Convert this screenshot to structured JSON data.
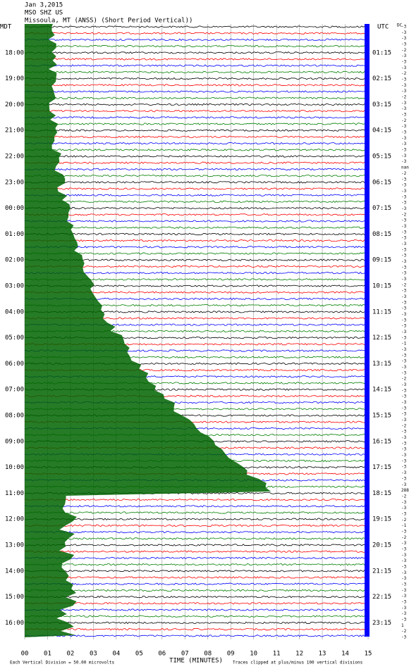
{
  "chart_data": {
    "type": "helicorder",
    "date": "Jan 3,2015",
    "station": "MSO SHZ US",
    "location": "Missoula, MT (ANSS) (Short Period Vertical))",
    "left_axis_label": "MDT",
    "right_axis_label": "UTC",
    "left_times": [
      "18:00",
      "19:00",
      "20:00",
      "21:00",
      "22:00",
      "23:00",
      "00:00",
      "01:00",
      "02:00",
      "03:00",
      "04:00",
      "05:00",
      "06:00",
      "07:00",
      "08:00",
      "09:00",
      "10:00",
      "11:00",
      "12:00",
      "13:00",
      "14:00",
      "15:00",
      "16:00"
    ],
    "right_times": [
      "01:15",
      "02:15",
      "03:15",
      "04:15",
      "05:15",
      "06:15",
      "07:15",
      "08:15",
      "09:15",
      "10:15",
      "11:15",
      "12:15",
      "13:15",
      "14:15",
      "15:15",
      "16:15",
      "17:15",
      "18:15",
      "19:15",
      "20:15",
      "21:15",
      "22:15",
      "23:15"
    ],
    "offset_header": "DC",
    "offsets": [
      -3,
      -3,
      -3,
      -3,
      -2,
      -3,
      -3,
      -3,
      -2,
      -3,
      -3,
      -3,
      -2,
      -3,
      -3,
      -3,
      -2,
      -3,
      -3,
      -3,
      -3,
      -3,
      -3,
      -3,
      "nan",
      -2,
      -3,
      -3,
      -3,
      -3,
      -3,
      -3,
      -2,
      -3,
      -3,
      -3,
      -3,
      -3,
      -3,
      -3,
      -3,
      -3,
      -3,
      -3,
      -2,
      -3,
      -3,
      -3,
      -3,
      -3,
      -3,
      -3,
      -3,
      -3,
      -1,
      -3,
      -3,
      -3,
      -3,
      -3,
      -2,
      -3,
      -3,
      -3,
      -3,
      -3,
      -3,
      -3,
      -2,
      -3,
      -3,
      -3,
      -3,
      -3,
      -3,
      -3,
      -3,
      -3,
      -3,
      288,
      -2,
      -3,
      -3,
      -3,
      -2,
      -1,
      -3,
      -2,
      -3,
      -3,
      -3,
      -3,
      -3,
      -3,
      -3,
      -3,
      -3,
      -3,
      -3,
      -3,
      -3,
      -3,
      1,
      -2,
      -3
    ],
    "xlabel": "TIME (MINUTES)",
    "xlim": [
      0,
      15
    ],
    "xticks": [
      {
        "value": 0,
        "label": "00"
      },
      {
        "value": 1,
        "label": "01"
      },
      {
        "value": 2,
        "label": "02"
      },
      {
        "value": 3,
        "label": "03"
      },
      {
        "value": 4,
        "label": "04"
      },
      {
        "value": 5,
        "label": "05"
      },
      {
        "value": 6,
        "label": "06"
      },
      {
        "value": 7,
        "label": "07"
      },
      {
        "value": 8,
        "label": "08"
      },
      {
        "value": 9,
        "label": "09"
      },
      {
        "value": 10,
        "label": "10"
      },
      {
        "value": 11,
        "label": "11"
      },
      {
        "value": 12,
        "label": "12"
      },
      {
        "value": 13,
        "label": "13"
      },
      {
        "value": 14,
        "label": "14"
      },
      {
        "value": 15,
        "label": "15"
      }
    ],
    "note_left": "Each Vertical Division = 50.00 microvolts",
    "note_right": "Traces clipped at plus/minus 100 vertical divisions",
    "trace_colors": [
      "#000000",
      "#ff0000",
      "#0000ff",
      "#007f00"
    ],
    "grid": true
  }
}
